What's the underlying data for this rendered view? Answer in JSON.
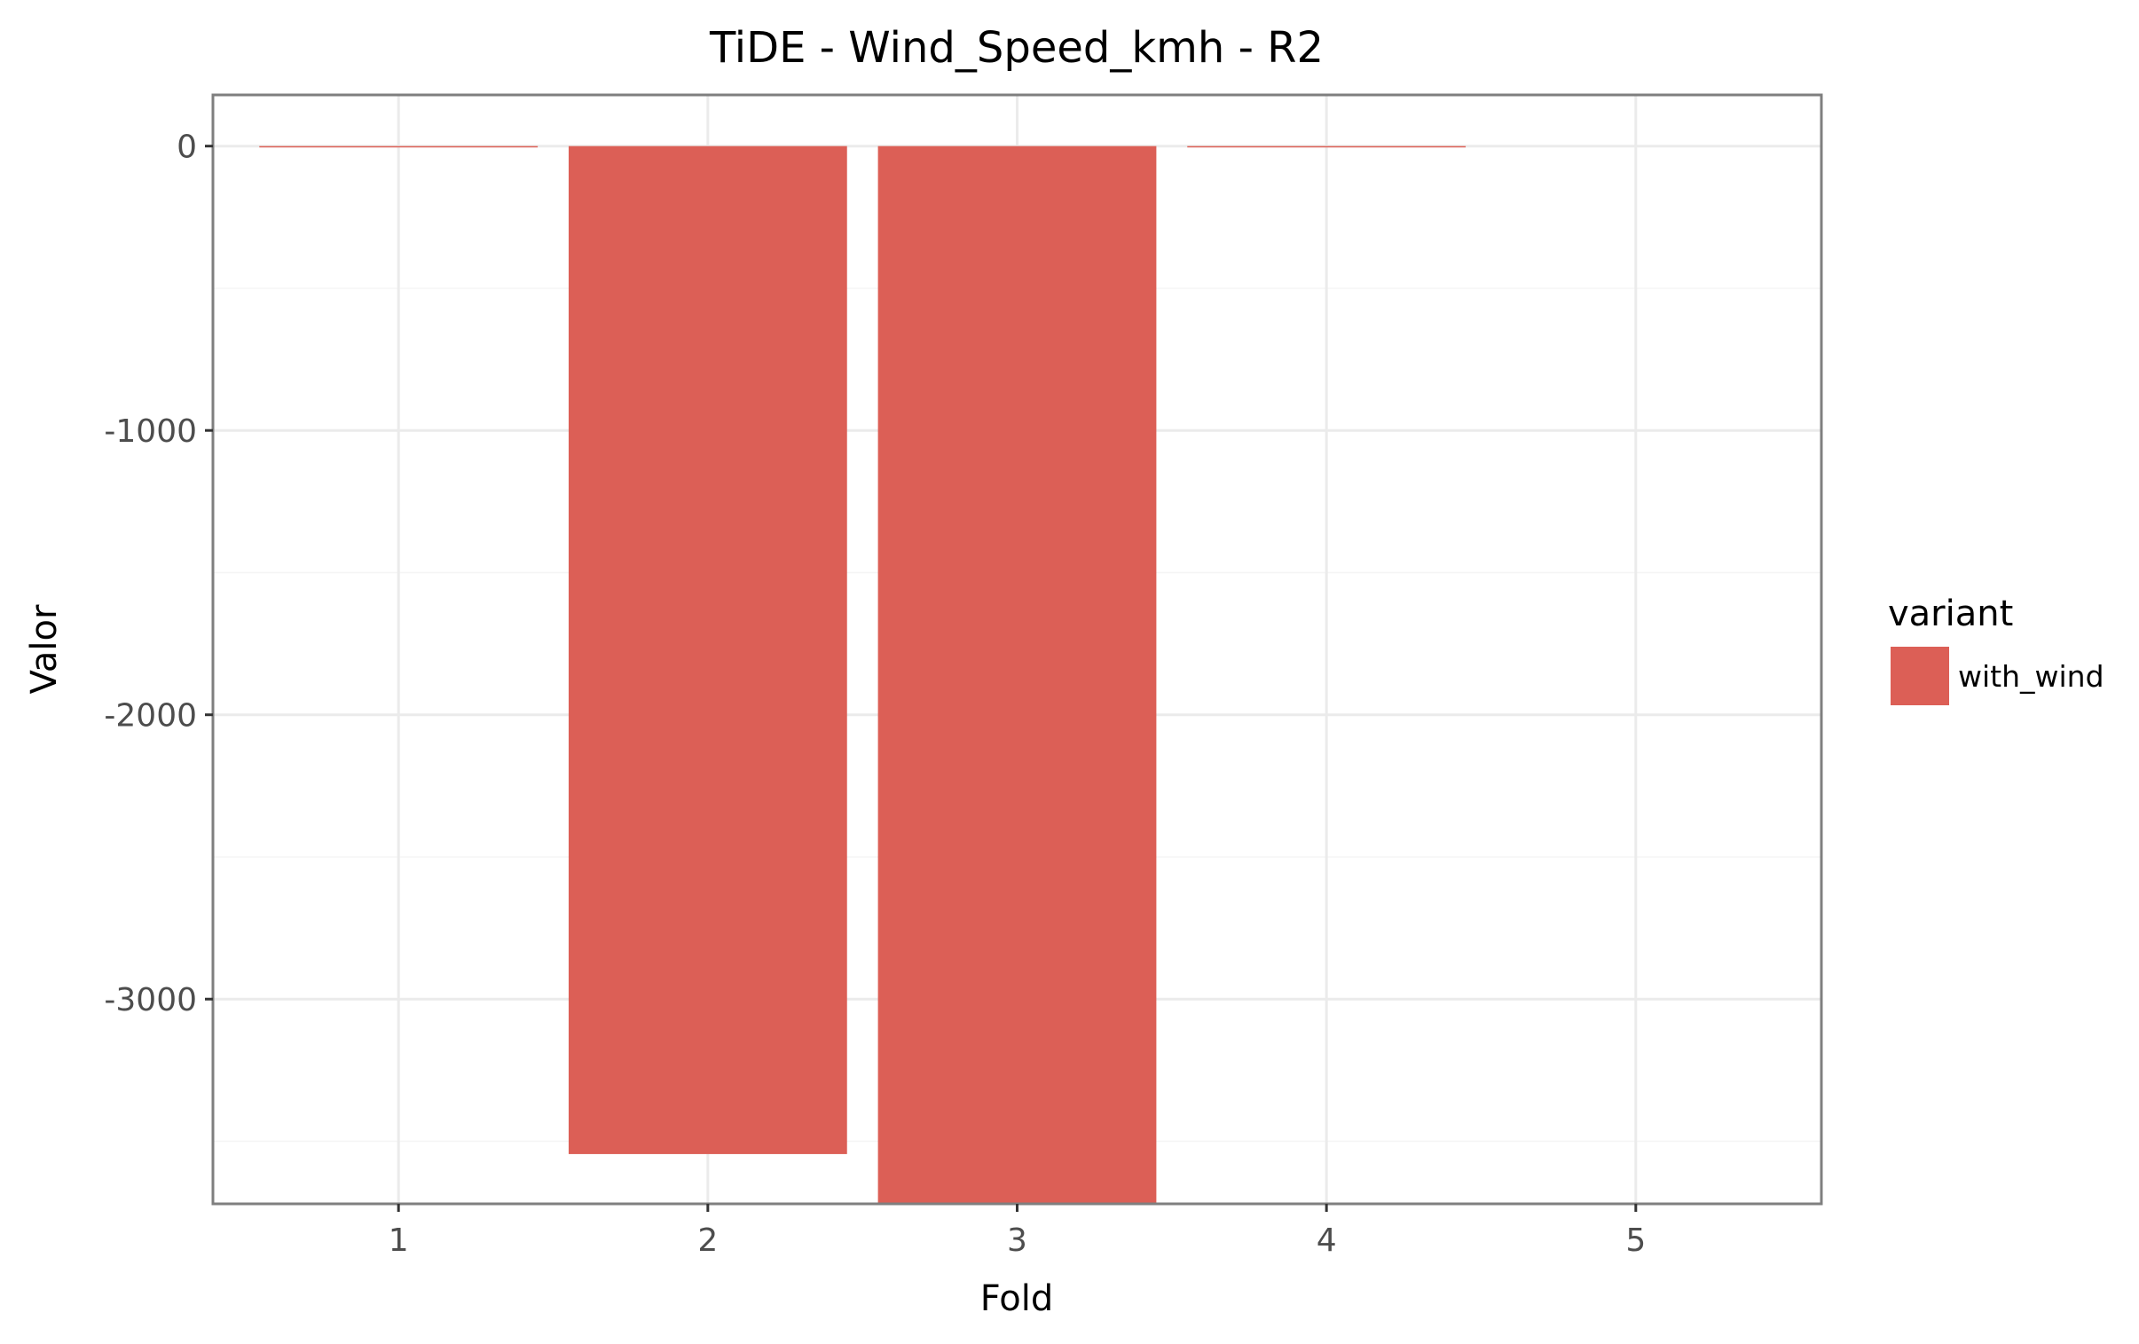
{
  "chart_data": {
    "type": "bar",
    "title": "TiDE - Wind_Speed_kmh - R2",
    "xlabel": "Fold",
    "ylabel": "Valor",
    "categories": [
      "1",
      "2",
      "3",
      "4",
      "5"
    ],
    "series": [
      {
        "name": "with_wind",
        "color": "#dc5f56",
        "values": [
          -3,
          -3545,
          -3720,
          -3,
          null
        ]
      }
    ],
    "ylim": [
      -3720,
      180
    ],
    "yticks": [
      0,
      -1000,
      -2000,
      -3000
    ],
    "ytick_labels": [
      "0",
      "-1000",
      "-2000",
      "-3000"
    ],
    "xtick_labels": [
      "1",
      "2",
      "3",
      "4",
      "5"
    ],
    "grid": true,
    "legend": {
      "title": "variant",
      "position": "right",
      "entries": [
        "with_wind"
      ]
    }
  }
}
